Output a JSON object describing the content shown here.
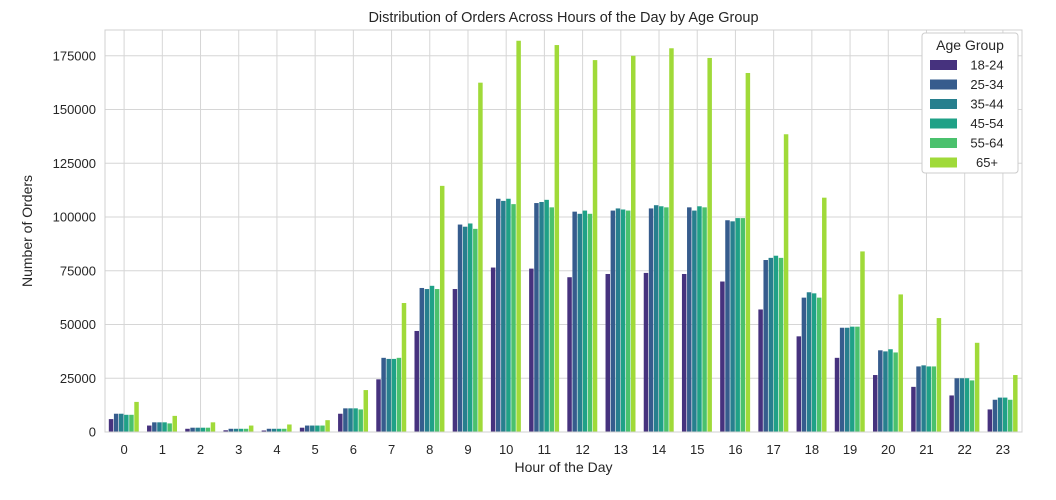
{
  "chart_data": {
    "type": "bar",
    "title": "Distribution of Orders Across Hours of the Day by Age Group",
    "xlabel": "Hour of the Day",
    "ylabel": "Number of Orders",
    "ylim": [
      0,
      187000
    ],
    "yticks": [
      0,
      25000,
      50000,
      75000,
      100000,
      125000,
      150000,
      175000
    ],
    "ytick_labels": [
      "0",
      "25000",
      "50000",
      "75000",
      "100000",
      "125000",
      "150000",
      "175000"
    ],
    "grid": true,
    "legend_title": "Age Group",
    "legend_position": "top-right",
    "categories": [
      "0",
      "1",
      "2",
      "3",
      "4",
      "5",
      "6",
      "7",
      "8",
      "9",
      "10",
      "11",
      "12",
      "13",
      "14",
      "15",
      "16",
      "17",
      "18",
      "19",
      "20",
      "21",
      "22",
      "23"
    ],
    "series": [
      {
        "name": "18-24",
        "color": "#46327e",
        "values": [
          6000,
          3000,
          1500,
          800,
          700,
          2000,
          8500,
          24500,
          47000,
          66500,
          76500,
          76000,
          72000,
          73500,
          74000,
          73500,
          70000,
          57000,
          44500,
          34500,
          26500,
          21000,
          17000,
          10500
        ]
      },
      {
        "name": "25-34",
        "color": "#365c8d",
        "values": [
          8500,
          4500,
          2000,
          1500,
          1500,
          3000,
          11000,
          34500,
          67000,
          96500,
          108500,
          106500,
          102500,
          103000,
          104000,
          104500,
          98500,
          80000,
          62500,
          48500,
          38000,
          30500,
          25000,
          15000
        ]
      },
      {
        "name": "35-44",
        "color": "#277f8e",
        "values": [
          8500,
          4500,
          2000,
          1500,
          1500,
          3000,
          11000,
          34000,
          66500,
          95500,
          107500,
          107000,
          101500,
          104000,
          105500,
          103000,
          98000,
          81000,
          65000,
          48500,
          37500,
          31000,
          25000,
          16000
        ]
      },
      {
        "name": "45-54",
        "color": "#1fa187",
        "values": [
          8000,
          4500,
          2000,
          1500,
          1500,
          3000,
          11000,
          34000,
          68000,
          97000,
          108500,
          108000,
          103000,
          103500,
          105000,
          105000,
          99500,
          82000,
          64500,
          49000,
          38500,
          30500,
          25000,
          16000
        ]
      },
      {
        "name": "55-64",
        "color": "#4ac16d",
        "values": [
          8000,
          4000,
          2000,
          1500,
          1500,
          3000,
          10500,
          34500,
          66500,
          94500,
          106000,
          104500,
          101500,
          103000,
          104500,
          104500,
          99500,
          81000,
          62500,
          49000,
          37000,
          30500,
          24000,
          15000
        ]
      },
      {
        "name": "65+",
        "color": "#a0da39",
        "values": [
          14000,
          7500,
          4500,
          3000,
          3500,
          5500,
          19500,
          60000,
          114500,
          162500,
          182000,
          180000,
          173000,
          175000,
          178500,
          174000,
          167000,
          138500,
          109000,
          84000,
          64000,
          53000,
          41500,
          26500
        ]
      }
    ]
  }
}
